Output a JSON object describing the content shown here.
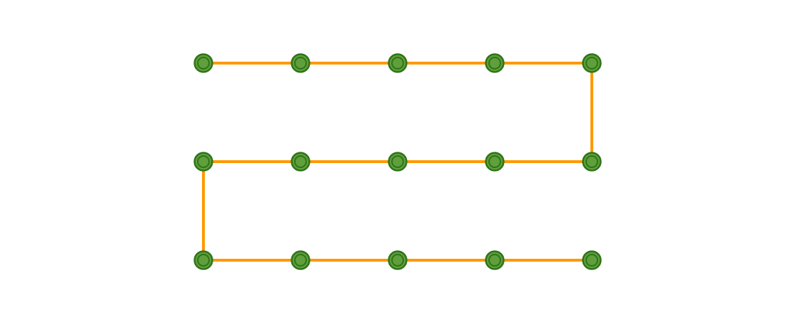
{
  "diagram": {
    "kind": "serpentine-path",
    "grid": {
      "rows": 3,
      "cols": 5
    },
    "path_order": [
      [
        0,
        0
      ],
      [
        0,
        1
      ],
      [
        0,
        2
      ],
      [
        0,
        3
      ],
      [
        0,
        4
      ],
      [
        1,
        4
      ],
      [
        1,
        3
      ],
      [
        1,
        2
      ],
      [
        1,
        1
      ],
      [
        1,
        0
      ],
      [
        2,
        0
      ],
      [
        2,
        1
      ],
      [
        2,
        2
      ],
      [
        2,
        3
      ],
      [
        2,
        4
      ]
    ],
    "colors": {
      "background": "#ffffff",
      "path": "#ff9900",
      "node_fill": "#5fa03c",
      "node_stroke": "#2f7418"
    },
    "node_style": "double-ring"
  }
}
